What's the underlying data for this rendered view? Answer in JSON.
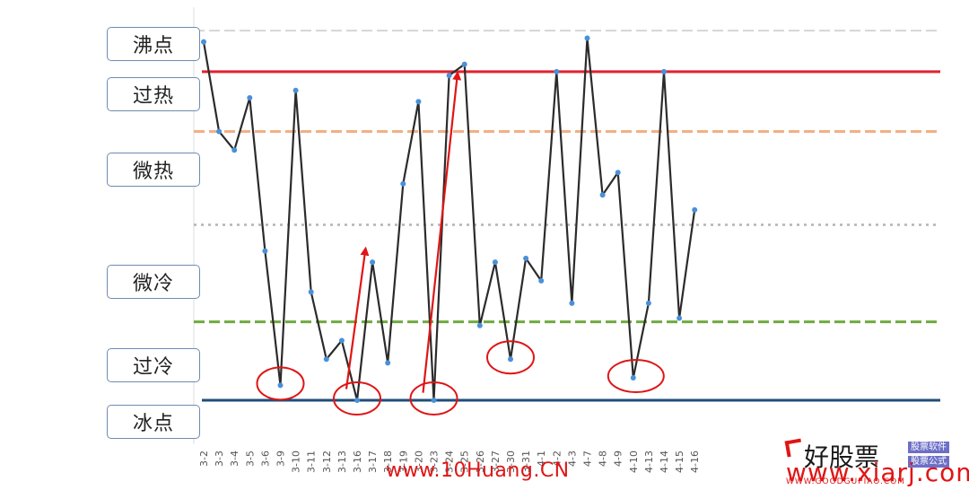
{
  "chart_data": {
    "type": "line",
    "title": "",
    "xlabel": "",
    "ylabel": "",
    "ylim": [
      0,
      100
    ],
    "grid": false,
    "x": [
      "3-2",
      "3-3",
      "3-4",
      "3-5",
      "3-6",
      "3-9",
      "3-10",
      "3-11",
      "3-12",
      "3-13",
      "3-16",
      "3-17",
      "3-18",
      "3-19",
      "3-20",
      "3-23",
      "3-24",
      "3-25",
      "3-26",
      "3-27",
      "3-30",
      "3-31",
      "4-1",
      "4-2",
      "4-3",
      "4-7",
      "4-8",
      "4-9",
      "4-10",
      "4-13",
      "4-14",
      "4-15",
      "4-16"
    ],
    "values": [
      96,
      72,
      67,
      81,
      40,
      4,
      83,
      29,
      11,
      16,
      0,
      37,
      10,
      58,
      80,
      0,
      87,
      90,
      20,
      37,
      11,
      38,
      32,
      88,
      26,
      97,
      55,
      61,
      6,
      26,
      88,
      22,
      51
    ],
    "levels": [
      {
        "label": "沸点",
        "value": 100
      },
      {
        "label": "过热",
        "value": 86
      },
      {
        "label": "微热",
        "value": 67
      },
      {
        "label": "微冷",
        "value": 30
      },
      {
        "label": "过冷",
        "value": 8
      },
      {
        "label": "冰点",
        "value": -4
      }
    ],
    "reference_lines": [
      {
        "value": 99,
        "style": "dashed",
        "color": "#d5d5d5"
      },
      {
        "value": 88,
        "style": "solid",
        "color": "#e5202e"
      },
      {
        "value": 72,
        "style": "dashed",
        "color": "#f2b084"
      },
      {
        "value": 47,
        "style": "dotted",
        "color": "#b3b3b3"
      },
      {
        "value": 21,
        "style": "dashed",
        "color": "#6faa3e"
      },
      {
        "value": 0,
        "style": "solid",
        "color": "#1f4e79"
      }
    ],
    "series_color": "#2b2b2b",
    "point_color": "#4a90d9",
    "annotations": {
      "circled_x": [
        "3-9",
        "3-16",
        "3-23",
        "3-30",
        "4-10"
      ],
      "arrows": [
        {
          "from_x": "3-16",
          "from_y": 3,
          "to_x": "3-17",
          "to_y": 40
        },
        {
          "from_x": "3-23",
          "from_y": 2,
          "to_x": "3-25",
          "to_y": 87
        }
      ],
      "color": "#e01515"
    }
  },
  "watermarks": {
    "center": "www.10Huang.CN",
    "brand": "好股票",
    "tag1": "股票软件",
    "tag2": "股票公式",
    "site": "www.xiarj.com",
    "sub": "WWW.GOODGUPIAO.COM"
  }
}
